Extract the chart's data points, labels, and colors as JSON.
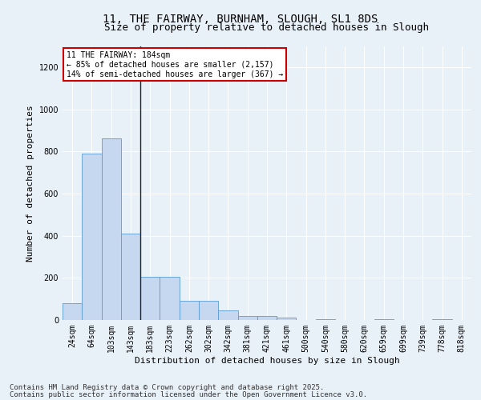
{
  "title": "11, THE FAIRWAY, BURNHAM, SLOUGH, SL1 8DS",
  "subtitle": "Size of property relative to detached houses in Slough",
  "xlabel": "Distribution of detached houses by size in Slough",
  "ylabel": "Number of detached properties",
  "categories": [
    "24sqm",
    "64sqm",
    "103sqm",
    "143sqm",
    "183sqm",
    "223sqm",
    "262sqm",
    "302sqm",
    "342sqm",
    "381sqm",
    "421sqm",
    "461sqm",
    "500sqm",
    "540sqm",
    "580sqm",
    "620sqm",
    "659sqm",
    "699sqm",
    "739sqm",
    "778sqm",
    "818sqm"
  ],
  "values": [
    80,
    790,
    860,
    410,
    205,
    205,
    90,
    90,
    45,
    20,
    20,
    10,
    0,
    5,
    0,
    0,
    5,
    0,
    0,
    5,
    0
  ],
  "bar_color": "#c5d8f0",
  "bar_edge_color": "#5b9bd5",
  "vline_index": 4,
  "annotation_text": "11 THE FAIRWAY: 184sqm\n← 85% of detached houses are smaller (2,157)\n14% of semi-detached houses are larger (367) →",
  "annotation_box_color": "#ffffff",
  "annotation_box_edge_color": "#cc0000",
  "ylim": [
    0,
    1300
  ],
  "yticks": [
    0,
    200,
    400,
    600,
    800,
    1000,
    1200
  ],
  "background_color": "#e8f0f8",
  "grid_color": "#ffffff",
  "title_fontsize": 10,
  "subtitle_fontsize": 9,
  "axis_label_fontsize": 8,
  "tick_fontsize": 7,
  "annotation_fontsize": 7,
  "footer_fontsize": 6.5,
  "footer1": "Contains HM Land Registry data © Crown copyright and database right 2025.",
  "footer2": "Contains public sector information licensed under the Open Government Licence v3.0."
}
